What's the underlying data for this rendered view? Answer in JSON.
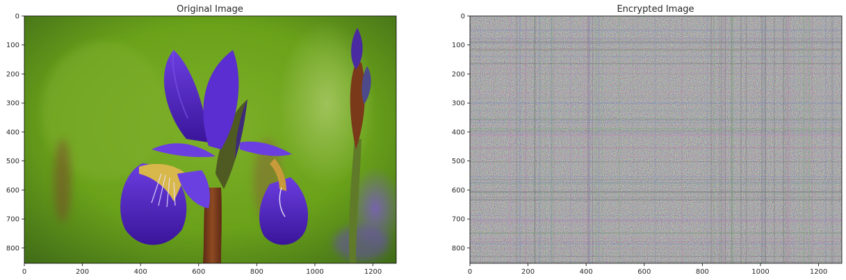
{
  "figure": {
    "background": "#ffffff",
    "text_color": "#262626",
    "axis_color": "#000000"
  },
  "chart_data": [
    {
      "type": "image",
      "title": "Original Image",
      "xlabel": "",
      "ylabel": "",
      "xlim": [
        0,
        1280
      ],
      "ylim": [
        853,
        0
      ],
      "x_ticks": [
        0,
        200,
        400,
        600,
        800,
        1000,
        1200
      ],
      "y_ticks": [
        0,
        100,
        200,
        300,
        400,
        500,
        600,
        700,
        800
      ],
      "grid": false,
      "content": "photo of a purple iris flower with yellow-veined falls and buds on a blurred green background",
      "colors": {
        "bg_dark": "#4d7a1e",
        "bg_mid": "#6aa21a",
        "bg_light": "#8fba4a",
        "petal_dark": "#3a159a",
        "petal_mid": "#5b2bd0",
        "petal_light": "#7c55e6",
        "vein_yellow": "#d8b84a",
        "stem": "#7a3a1a",
        "sheath": "#4f5a22"
      }
    },
    {
      "type": "image",
      "title": "Encrypted Image",
      "xlabel": "",
      "ylabel": "",
      "xlim": [
        0,
        1280
      ],
      "ylim": [
        853,
        0
      ],
      "x_ticks": [
        0,
        200,
        400,
        600,
        800,
        1000,
        1200
      ],
      "y_ticks": [
        0,
        100,
        200,
        300,
        400,
        500,
        600,
        700,
        800
      ],
      "grid": false,
      "content": "pixel noise with faint horizontal and vertical streaks",
      "colors": {
        "base": "#7f7f84",
        "noise_palette": [
          "#b06aa0",
          "#6aa86a",
          "#6a7cc0",
          "#9a9a9a",
          "#5a5a60",
          "#c08ab8"
        ]
      }
    }
  ]
}
